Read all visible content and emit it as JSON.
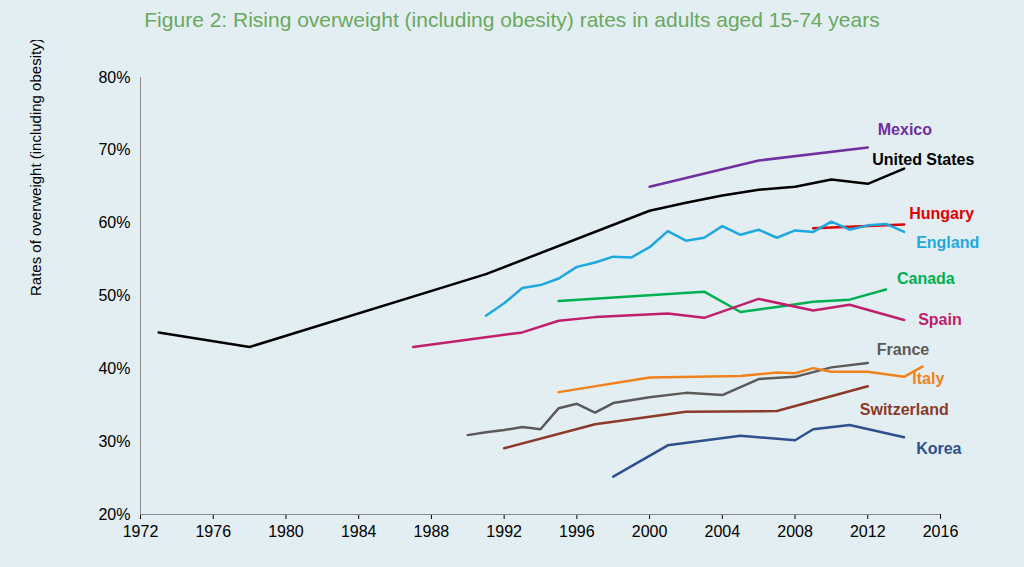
{
  "chart_data": {
    "type": "line",
    "title": "Figure 2: Rising overweight (including obesity) rates in adults aged 15-74 years",
    "y_label": "Rates of overweight (including obesity)",
    "xlim": [
      1972,
      2016
    ],
    "xticks": [
      1972,
      1976,
      1980,
      1984,
      1988,
      1992,
      1996,
      2000,
      2004,
      2008,
      2012,
      2016
    ],
    "ylim": [
      20,
      80
    ],
    "yticks": [
      {
        "value": 20,
        "label": "20%"
      },
      {
        "value": 30,
        "label": "30%"
      },
      {
        "value": 40,
        "label": "40%"
      },
      {
        "value": 50,
        "label": "50%"
      },
      {
        "value": 60,
        "label": "60%"
      },
      {
        "value": 70,
        "label": "70%"
      },
      {
        "value": 80,
        "label": "80%"
      }
    ],
    "grid": false,
    "series": [
      {
        "name": "Mexico",
        "color": "#7030a0",
        "x": [
          2000,
          2006,
          2012
        ],
        "values": [
          65,
          68.6,
          70.4
        ]
      },
      {
        "name": "United States",
        "color": "#000000",
        "x": [
          1973,
          1978,
          1991,
          2000,
          2002,
          2004,
          2006,
          2008,
          2010,
          2012,
          2014
        ],
        "values": [
          45,
          43,
          53,
          61.7,
          62.8,
          63.8,
          64.6,
          65.0,
          66.0,
          65.4,
          67.5
        ]
      },
      {
        "name": "Hungary",
        "color": "#e00000",
        "x": [
          2009,
          2014
        ],
        "values": [
          59.3,
          59.8
        ]
      },
      {
        "name": "England",
        "color": "#1fa8e0",
        "x": [
          1991,
          1992,
          1993,
          1994,
          1995,
          1996,
          1997,
          1998,
          1999,
          2000,
          2001,
          2002,
          2003,
          2004,
          2005,
          2006,
          2007,
          2008,
          2009,
          2010,
          2011,
          2012,
          2013,
          2014
        ],
        "values": [
          47.3,
          49,
          51.1,
          51.5,
          52.4,
          54,
          54.6,
          55.4,
          55.3,
          56.7,
          58.9,
          57.6,
          58,
          59.6,
          58.4,
          59.1,
          58,
          59,
          58.8,
          60.2,
          59.1,
          59.7,
          59.9,
          58.8
        ]
      },
      {
        "name": "Canada",
        "color": "#00b050",
        "x": [
          1995,
          2003,
          2005,
          2007,
          2009,
          2011,
          2013
        ],
        "values": [
          49.3,
          50.6,
          47.8,
          48.5,
          49.2,
          49.5,
          50.9
        ]
      },
      {
        "name": "Spain",
        "color": "#c0206b",
        "x": [
          1987,
          1993,
          1995,
          1997,
          2001,
          2003,
          2006,
          2009,
          2011,
          2014
        ],
        "values": [
          43,
          45,
          46.6,
          47.1,
          47.6,
          47,
          49.6,
          48,
          48.8,
          46.7
        ]
      },
      {
        "name": "France",
        "color": "#5a5a5a",
        "x": [
          1990,
          1991,
          1992,
          1993,
          1994,
          1995,
          1996,
          1997,
          1998,
          2000,
          2002,
          2004,
          2006,
          2008,
          2010,
          2012
        ],
        "values": [
          30.9,
          31.3,
          31.6,
          32,
          31.7,
          34.6,
          35.2,
          34,
          35.3,
          36.1,
          36.7,
          36.4,
          38.6,
          38.9,
          40.2,
          40.8
        ]
      },
      {
        "name": "Italy",
        "color": "#f0821e",
        "x": [
          1995,
          2000,
          2005,
          2007,
          2008,
          2009,
          2010,
          2012,
          2014,
          2015
        ],
        "values": [
          36.8,
          38.8,
          39,
          39.5,
          39.4,
          40.1,
          39.6,
          39.6,
          38.9,
          40.3
        ]
      },
      {
        "name": "Switzerland",
        "color": "#8b3a2a",
        "x": [
          1992,
          1997,
          2002,
          2007,
          2012
        ],
        "values": [
          29.1,
          32.4,
          34.1,
          34.2,
          37.6
        ]
      },
      {
        "name": "Korea",
        "color": "#2f4f8f",
        "x": [
          1998,
          2001,
          2005,
          2008,
          2009,
          2011,
          2014
        ],
        "values": [
          25.2,
          29.5,
          30.8,
          30.2,
          31.7,
          32.3,
          30.6
        ]
      }
    ]
  }
}
